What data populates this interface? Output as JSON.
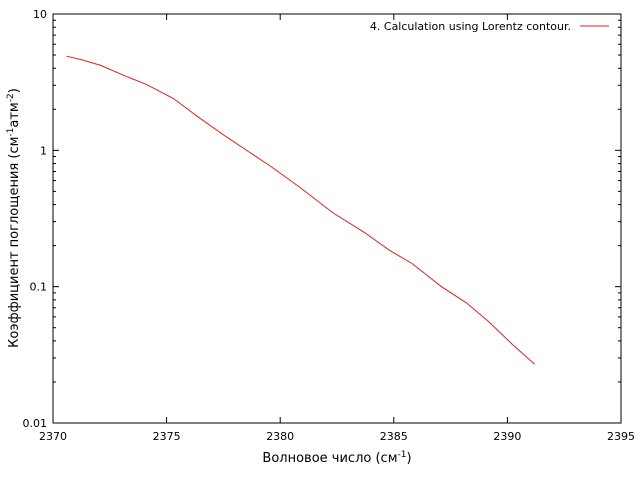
{
  "chart_data": {
    "type": "line",
    "xlabel": "Волновое число (см",
    "xlabel_sup": "-1",
    "xlabel_end": ")",
    "ylabel": "Коэффициент поглощения (см",
    "ylabel_sup1": "-1",
    "ylabel_mid": "атм",
    "ylabel_sup2": "-2",
    "ylabel_end": ")",
    "xlim": [
      2370,
      2395
    ],
    "ylim": [
      0.01,
      10
    ],
    "yscale": "log",
    "x_ticks": [
      2370,
      2375,
      2380,
      2385,
      2390,
      2395
    ],
    "x_tick_labels": [
      "2370",
      "2375",
      "2380",
      "2385",
      "2390",
      "2395"
    ],
    "y_ticks": [
      0.01,
      0.1,
      1,
      10
    ],
    "y_tick_labels": [
      "0.01",
      "0.1",
      "1",
      "10"
    ],
    "legend_position": "top-right",
    "grid": false,
    "series": [
      {
        "name": "4. Calculation using Lorentz contour.",
        "color": "#e02020",
        "x": [
          2370.6,
          2371.3,
          2372.1,
          2373.2,
          2374.1,
          2375.3,
          2376.4,
          2377.5,
          2378.6,
          2379.6,
          2380.9,
          2382.3,
          2383.7,
          2384.8,
          2385.8,
          2387.1,
          2388.2,
          2389.2,
          2390.2,
          2391.2
        ],
        "y": [
          4.9,
          4.6,
          4.2,
          3.5,
          3.05,
          2.4,
          1.75,
          1.3,
          0.98,
          0.76,
          0.53,
          0.35,
          0.25,
          0.185,
          0.148,
          0.1,
          0.076,
          0.055,
          0.038,
          0.027
        ]
      }
    ]
  }
}
